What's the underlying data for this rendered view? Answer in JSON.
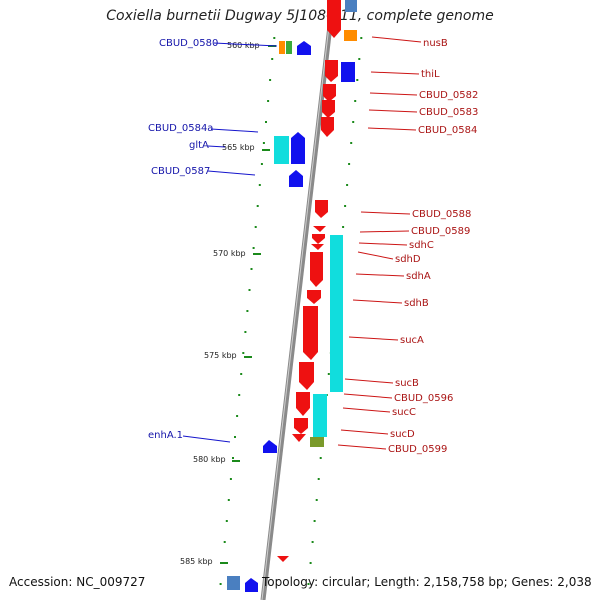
{
  "title": "Coxiella burnetii Dugway 5J108-111, complete genome",
  "accession": "Accession: NC_009727",
  "topology": "Topology: circular; Length: 2,158,758 bp; Genes: 2,038",
  "colors": {
    "forward": "#1010ee",
    "reverse": "#ee1111",
    "cyan": "#11dddd",
    "orange": "#ff8c00",
    "green": "#22aa22",
    "olive": "#7a9a2a",
    "steel": "#4a7fc0",
    "tick": "#1b8a1b",
    "backbone": "#888888"
  },
  "ticks": [
    "560 kbp",
    "565 kbp",
    "570 kbp",
    "575 kbp",
    "580 kbp",
    "585 kbp"
  ],
  "left_labels": [
    "CBUD_0580",
    "CBUD_0584a",
    "gltA",
    "CBUD_0587",
    "enhA.1"
  ],
  "right_labels": [
    "nusB",
    "thiL",
    "CBUD_0582",
    "CBUD_0583",
    "CBUD_0584",
    "CBUD_0588",
    "CBUD_0589",
    "sdhC",
    "sdhD",
    "sdhA",
    "sdhB",
    "sucA",
    "sucB",
    "CBUD_0596",
    "sucC",
    "sucD",
    "CBUD_0599"
  ]
}
